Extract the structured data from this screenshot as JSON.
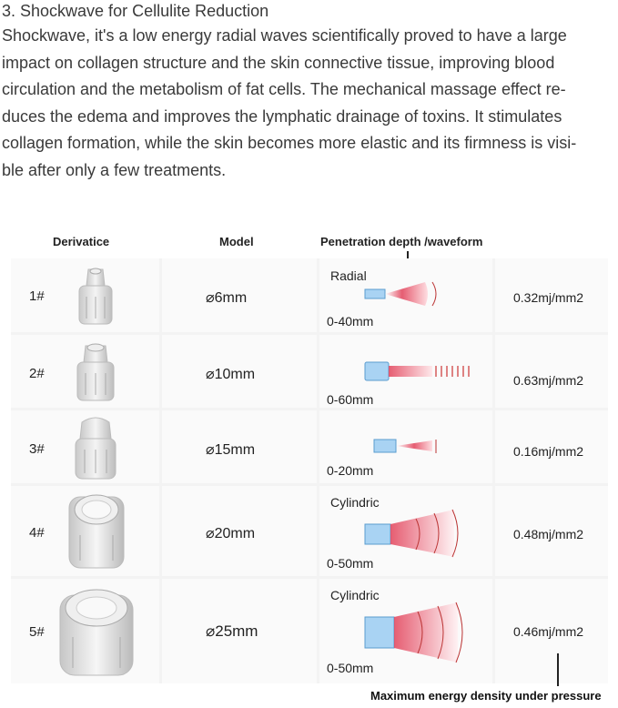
{
  "heading": "3. Shockwave for Cellulite Reduction",
  "paragraph_lines": [
    "Shockwave, it's a low energy radial waves scientifically proved to have a large",
    "impact on collagen structure and the skin connective tissue, improving blood",
    "circulation and the metabolism of fat cells. The mechanical massage effect re-",
    "duces the edema and improves the lymphatic drainage of toxins. It stimulates",
    "collagen formation, while the skin becomes more elastic and its firmness is visi-",
    "ble after only a few treatments."
  ],
  "table": {
    "headers": {
      "derivative": "Derivatice",
      "model": "Model",
      "penetration": "Penetration depth /waveform"
    },
    "rows": [
      {
        "index": "1#",
        "model": "⌀6mm",
        "waveform": "Radial",
        "depth": "0-40mm",
        "energy": "0.32mj/mm2"
      },
      {
        "index": "2#",
        "model": "⌀10mm",
        "waveform": "",
        "depth": "0-60mm",
        "energy": "0.63mj/mm2"
      },
      {
        "index": "3#",
        "model": "⌀15mm",
        "waveform": "",
        "depth": "0-20mm",
        "energy": "0.16mj/mm2"
      },
      {
        "index": "4#",
        "model": "⌀20mm",
        "waveform": "Cylindric",
        "depth": "0-50mm",
        "energy": "0.48mj/mm2"
      },
      {
        "index": "5#",
        "model": "⌀25mm",
        "waveform": "Cylindric",
        "depth": "0-50mm",
        "energy": "0.46mj/mm2"
      }
    ]
  },
  "footer_caption": "Maximum energy density under pressure"
}
